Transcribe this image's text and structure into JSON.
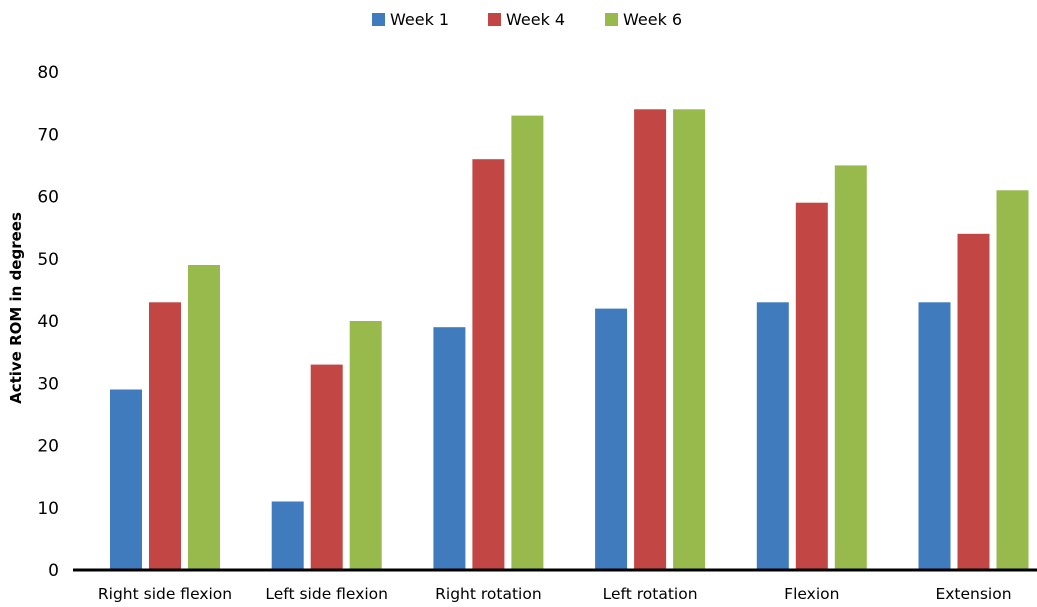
{
  "chart_data": {
    "type": "bar",
    "categories": [
      "Right side flexion",
      "Left side flexion",
      "Right rotation",
      "Left rotation",
      "Flexion",
      "Extension"
    ],
    "series": [
      {
        "name": "Week 1",
        "color": "#3F7BBD",
        "values": [
          29,
          11,
          39,
          42,
          43,
          43
        ]
      },
      {
        "name": "Week 4",
        "color": "#C24644",
        "values": [
          43,
          33,
          66,
          74,
          59,
          54
        ]
      },
      {
        "name": "Week 6",
        "color": "#98BA4D",
        "values": [
          49,
          40,
          73,
          74,
          65,
          61
        ]
      }
    ],
    "title": "",
    "xlabel": "",
    "ylabel": "Active ROM in degrees",
    "ylim": [
      0,
      80
    ],
    "yticks": [
      0,
      10,
      20,
      30,
      40,
      50,
      60,
      70,
      80
    ],
    "grid": false,
    "legend_position": "top-center"
  }
}
